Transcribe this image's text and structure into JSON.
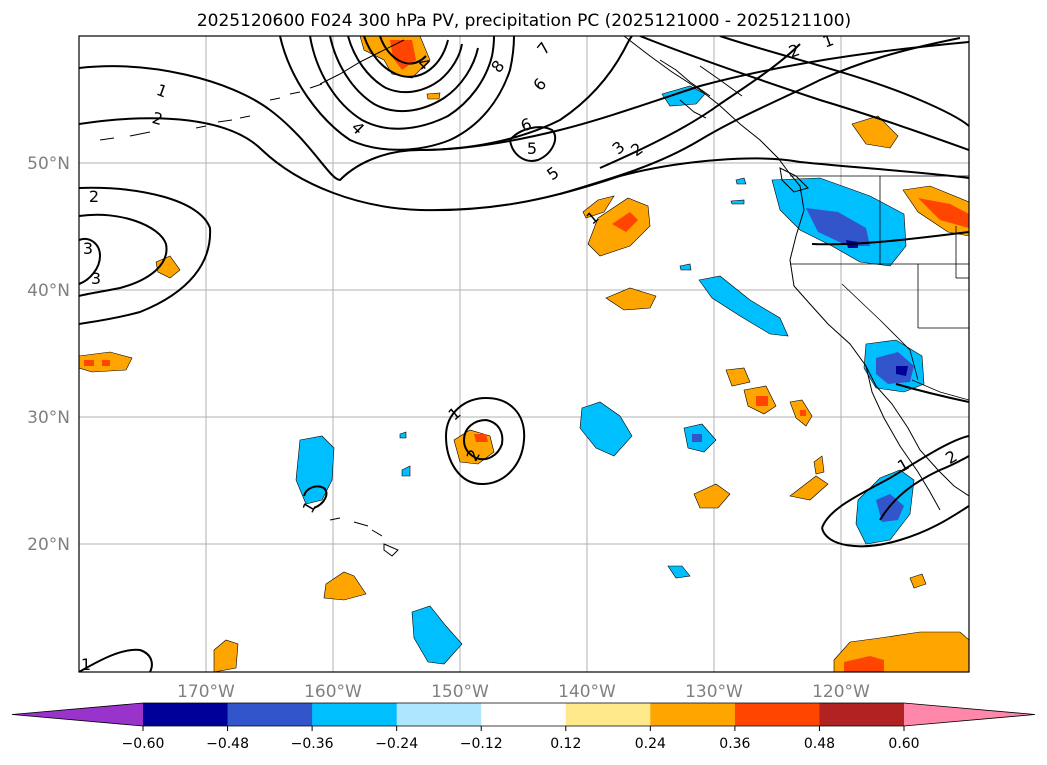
{
  "title": "2025120600 F024 300 hPa PV, precipitation PC (2025121000 - 2025121100)",
  "map": {
    "lon_labels": [
      "170°W",
      "160°W",
      "150°W",
      "140°W",
      "130°W",
      "120°W"
    ],
    "lat_labels": [
      "50°N",
      "40°N",
      "30°N",
      "20°N"
    ],
    "contour_labels": [
      "1",
      "2",
      "3",
      "4",
      "5",
      "6",
      "7",
      "8",
      "1",
      "2",
      "3",
      "2",
      "1",
      "2",
      "1",
      "3",
      "4",
      "5",
      "6",
      "1",
      "2",
      "1",
      "2",
      "1"
    ]
  },
  "colorbar": {
    "ticks": [
      "−0.60",
      "−0.48",
      "−0.36",
      "−0.24",
      "−0.12",
      "0.12",
      "0.24",
      "0.36",
      "0.48",
      "0.60"
    ],
    "colors": [
      "#9933cc",
      "#000099",
      "#3355cc",
      "#00bfff",
      "#aee6ff",
      "#ffffff",
      "#ffe98a",
      "#ffa500",
      "#ff4500",
      "#b22222",
      "#ff88aa"
    ]
  },
  "legend_colors": {
    "strong_neg": "#3355cc",
    "neg": "#00bfff",
    "pos": "#ffa500",
    "strong_pos": "#ff4500"
  }
}
